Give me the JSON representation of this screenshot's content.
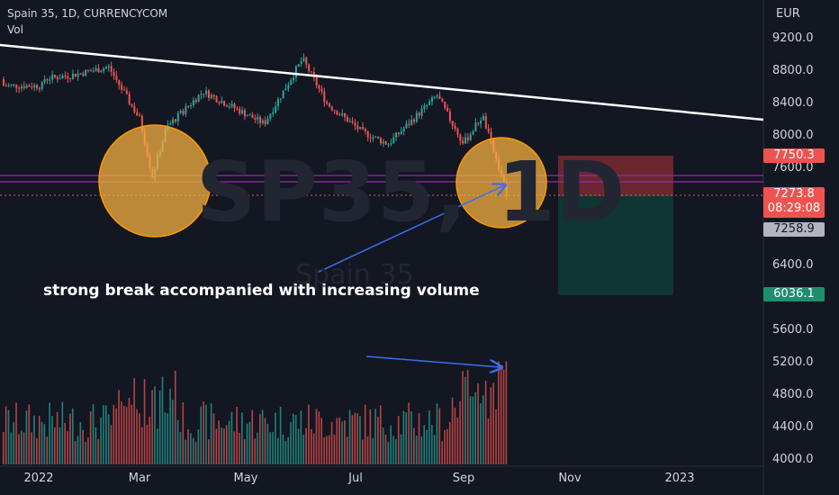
{
  "header": {
    "title": "Spain 35, 1D, CURRENCYCOM",
    "vol_label": "Vol",
    "currency": "EUR"
  },
  "watermark": {
    "symbol": "SP35, 1D",
    "name": "Spain 35"
  },
  "annotation": {
    "text": "strong break accompanied with increasing volume"
  },
  "price_axis": {
    "ticks": [
      "9200.0",
      "8800.0",
      "8400.0",
      "8000.0",
      "7600.0",
      "6400.0",
      "5600.0",
      "5200.0",
      "4800.0",
      "4400.0",
      "4000.0"
    ],
    "labels": {
      "stop": "7750.3",
      "last": "7273.8",
      "countdown": "08:29:08",
      "entry": "7258.9",
      "target": "6036.1"
    }
  },
  "time_axis": {
    "ticks": [
      "2022",
      "Mar",
      "May",
      "Jul",
      "Sep",
      "Nov",
      "2023"
    ]
  },
  "colors": {
    "up": "#26a69a",
    "down": "#ef5350",
    "trendline": "#ffffff",
    "circle_fill": "#f5b041",
    "circle_stroke": "#ff9800",
    "arrow": "#3d6ef0",
    "level_line": "#9c27b0",
    "stop_zone": "#7a2a31",
    "target_zone": "#0f3a34"
  },
  "chart_data": {
    "type": "candlestick",
    "symbol": "Spain 35",
    "interval": "1D",
    "source": "CURRENCYCOM",
    "currency": "EUR",
    "y_price_range": [
      4000,
      9400
    ],
    "key_points": [
      {
        "date": "2022-01-03",
        "close": 8700
      },
      {
        "date": "2022-01-20",
        "close": 8750
      },
      {
        "date": "2022-02-10",
        "close": 8850
      },
      {
        "date": "2022-02-28",
        "close": 8200
      },
      {
        "date": "2022-03-07",
        "close": 7500
      },
      {
        "date": "2022-03-15",
        "close": 8100
      },
      {
        "date": "2022-04-05",
        "close": 8550
      },
      {
        "date": "2022-05-10",
        "close": 8150
      },
      {
        "date": "2022-06-01",
        "close": 8950
      },
      {
        "date": "2022-06-15",
        "close": 8400
      },
      {
        "date": "2022-07-05",
        "close": 8050
      },
      {
        "date": "2022-07-20",
        "close": 7900
      },
      {
        "date": "2022-08-17",
        "close": 8500
      },
      {
        "date": "2022-09-01",
        "close": 7900
      },
      {
        "date": "2022-09-12",
        "close": 8250
      },
      {
        "date": "2022-09-26",
        "close": 7274
      }
    ],
    "trendline": [
      {
        "date": "2021-12-20",
        "price": 9000
      },
      {
        "date": "2023-02-15",
        "price": 8180
      }
    ],
    "horizontal_levels": [
      7580,
      7520
    ],
    "position": {
      "side": "short",
      "entry": 7258.9,
      "stop": 7750.3,
      "target": 6036.1
    },
    "last_price": 7273.8,
    "volume_peak_date": "2022-09-26"
  }
}
